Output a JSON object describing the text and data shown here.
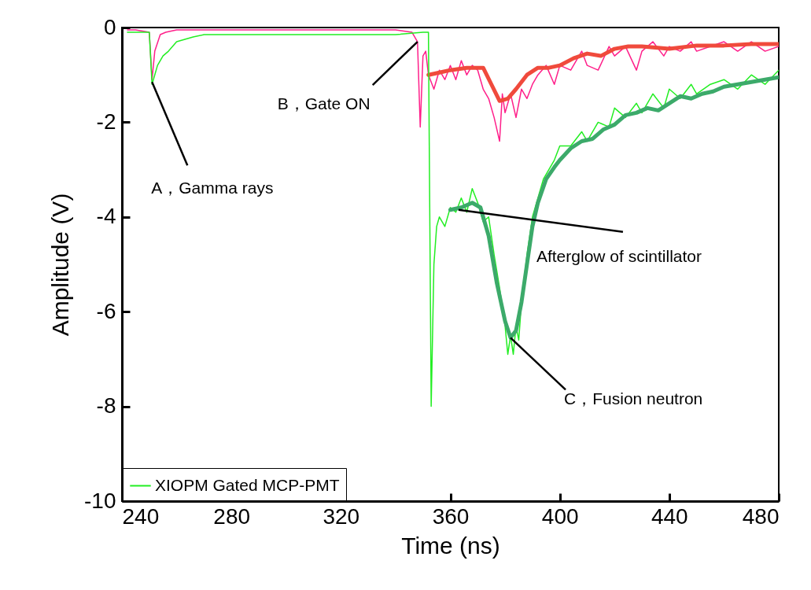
{
  "chart_data": {
    "type": "line",
    "xlabel": "Time (ns)",
    "ylabel": "Amplitude (V)",
    "xlim": [
      240,
      480
    ],
    "xticks": [
      240,
      280,
      320,
      360,
      400,
      440,
      480
    ],
    "ylim": [
      -10,
      0
    ],
    "yticks": [
      -10,
      -8,
      -6,
      -4,
      -2,
      0
    ],
    "grid": false,
    "legend": "bottom left",
    "series": [
      {
        "color": "#ff1f8a",
        "x": [
          242,
          245,
          250,
          251,
          252,
          254,
          256,
          260,
          270,
          280,
          300,
          320,
          340,
          346,
          348,
          349,
          350,
          351,
          352,
          354,
          356,
          358,
          360,
          362,
          364,
          366,
          368,
          370,
          372,
          374,
          376,
          378,
          379,
          380,
          382,
          384,
          386,
          388,
          390,
          392,
          395,
          398,
          400,
          404,
          408,
          410,
          414,
          418,
          420,
          424,
          428,
          430,
          434,
          438,
          440,
          444,
          448,
          450,
          455,
          460,
          465,
          470,
          475,
          480
        ],
        "values": [
          -0.05,
          -0.05,
          -0.1,
          -1.1,
          -0.5,
          -0.15,
          -0.1,
          -0.05,
          -0.05,
          -0.05,
          -0.05,
          -0.05,
          -0.05,
          -0.1,
          -0.3,
          -2.1,
          -0.6,
          -0.5,
          -1.0,
          -1.3,
          -0.9,
          -1.1,
          -0.8,
          -1.1,
          -0.7,
          -1.0,
          -0.8,
          -0.9,
          -1.3,
          -1.5,
          -1.9,
          -2.4,
          -1.4,
          -1.8,
          -1.4,
          -1.9,
          -1.3,
          -1.5,
          -1.2,
          -1.0,
          -0.8,
          -1.2,
          -0.8,
          -0.9,
          -0.5,
          -0.8,
          -0.9,
          -0.4,
          -0.6,
          -0.4,
          -0.9,
          -0.5,
          -0.3,
          -0.6,
          -0.4,
          -0.5,
          -0.3,
          -0.5,
          -0.4,
          -0.3,
          -0.5,
          -0.3,
          -0.5,
          -0.4
        ]
      },
      {
        "color": "#f04a3c",
        "x": [
          352,
          356,
          360,
          366,
          372,
          375,
          378,
          381,
          384,
          388,
          392,
          396,
          400,
          405,
          410,
          415,
          420,
          425,
          430,
          440,
          450,
          460,
          470,
          480
        ],
        "values": [
          -1.0,
          -0.95,
          -0.9,
          -0.85,
          -0.85,
          -1.2,
          -1.55,
          -1.5,
          -1.3,
          -1.0,
          -0.85,
          -0.85,
          -0.8,
          -0.65,
          -0.55,
          -0.6,
          -0.45,
          -0.4,
          -0.4,
          -0.45,
          -0.38,
          -0.38,
          -0.35,
          -0.35
        ]
      },
      {
        "name": "XIOPM Gated MCP-PMT",
        "color": "#22ee22",
        "x": [
          242,
          248,
          250,
          251,
          252,
          253,
          255,
          257,
          260,
          263,
          266,
          270,
          280,
          300,
          320,
          340,
          350,
          352,
          353,
          354,
          355,
          356,
          358,
          360,
          362,
          364,
          366,
          368,
          370,
          372,
          374,
          376,
          378,
          380,
          381,
          382,
          383,
          384,
          385,
          386,
          388,
          390,
          392,
          394,
          396,
          398,
          400,
          404,
          408,
          410,
          414,
          418,
          420,
          424,
          428,
          430,
          434,
          438,
          440,
          444,
          448,
          450,
          455,
          460,
          465,
          470,
          475,
          480
        ],
        "values": [
          -0.1,
          -0.1,
          -0.1,
          -1.2,
          -1.0,
          -0.8,
          -0.6,
          -0.5,
          -0.3,
          -0.25,
          -0.2,
          -0.15,
          -0.15,
          -0.15,
          -0.15,
          -0.15,
          -0.1,
          -0.1,
          -8.0,
          -5.0,
          -4.2,
          -4.0,
          -4.2,
          -3.8,
          -3.9,
          -3.6,
          -3.9,
          -3.4,
          -3.7,
          -4.1,
          -4.0,
          -4.8,
          -5.5,
          -6.3,
          -6.9,
          -6.5,
          -6.9,
          -6.3,
          -6.6,
          -5.8,
          -4.8,
          -4.0,
          -3.6,
          -3.2,
          -3.0,
          -2.8,
          -2.5,
          -2.5,
          -2.2,
          -2.4,
          -2.0,
          -2.1,
          -1.7,
          -1.9,
          -1.6,
          -1.8,
          -1.4,
          -1.7,
          -1.3,
          -1.5,
          -1.2,
          -1.4,
          -1.2,
          -1.1,
          -1.3,
          -1.0,
          -1.2,
          -0.9
        ]
      },
      {
        "color": "#3caa6a",
        "x": [
          360,
          364,
          368,
          371,
          374,
          377,
          380,
          382,
          384,
          386,
          388,
          390,
          392,
          395,
          398,
          400,
          404,
          408,
          412,
          416,
          420,
          424,
          428,
          432,
          436,
          440,
          444,
          448,
          452,
          456,
          460,
          465,
          470,
          475,
          480
        ],
        "values": [
          -3.85,
          -3.8,
          -3.7,
          -3.8,
          -4.4,
          -5.4,
          -6.2,
          -6.55,
          -6.4,
          -5.8,
          -5.0,
          -4.2,
          -3.7,
          -3.2,
          -2.95,
          -2.8,
          -2.55,
          -2.4,
          -2.35,
          -2.15,
          -2.05,
          -1.85,
          -1.8,
          -1.7,
          -1.75,
          -1.6,
          -1.45,
          -1.5,
          -1.4,
          -1.35,
          -1.25,
          -1.2,
          -1.15,
          -1.1,
          -1.05
        ]
      }
    ],
    "annotations": [
      {
        "text": "A，Gamma rays",
        "x": 251,
        "y": -1.15
      },
      {
        "text": "B，Gate ON",
        "x": 348,
        "y": -0.3
      },
      {
        "text": "Afterglow of scintillator",
        "x": 363,
        "y": -3.85
      },
      {
        "text": "C，Fusion neutron",
        "x": 382,
        "y": -6.55
      }
    ]
  }
}
